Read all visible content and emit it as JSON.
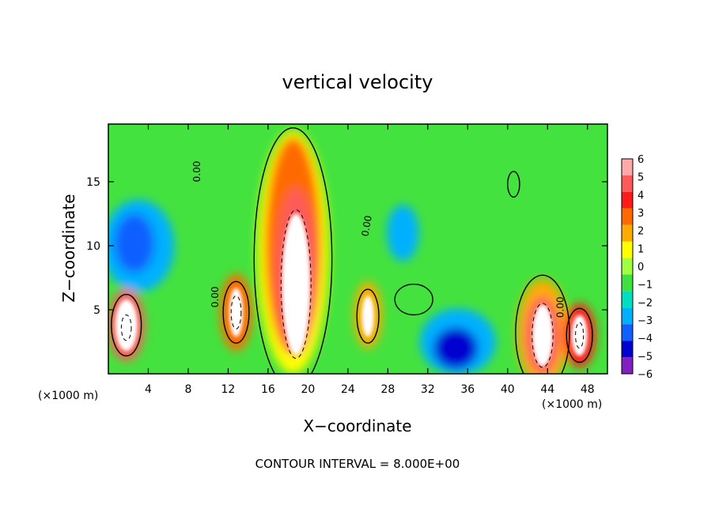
{
  "chart_data": {
    "type": "heatmap",
    "title": "vertical velocity",
    "xlabel": "X−coordinate",
    "ylabel": "Z−coordinate",
    "x_units_label": "(×1000 m)",
    "xlim": [
      0,
      50
    ],
    "ylim": [
      0,
      19.5
    ],
    "x_ticks": [
      4,
      8,
      12,
      16,
      20,
      24,
      28,
      32,
      36,
      40,
      44,
      48
    ],
    "x_tick_labels": [
      "4",
      "8",
      "12",
      "16",
      "20",
      "24",
      "28",
      "32",
      "36",
      "40",
      "44",
      "48"
    ],
    "y_ticks": [
      5,
      10,
      15
    ],
    "y_tick_labels": [
      "5",
      "10",
      "15"
    ],
    "contour_interval_text": "CONTOUR INTERVAL = 8.000E+00",
    "contour_labels": [
      "0.00",
      "0.00",
      "0.00",
      "0.00"
    ],
    "colorbar": {
      "min": -6,
      "max": 6,
      "labels": [
        "6",
        "5",
        "4",
        "3",
        "2",
        "1",
        "0",
        "−1",
        "−2",
        "−3",
        "−4",
        "−5",
        "−6"
      ],
      "colors": [
        "#ffaaaa",
        "#ff5a5a",
        "#ff1a1a",
        "#ff6a00",
        "#ffaa00",
        "#ffff00",
        "#a0ff40",
        "#40e040",
        "#00e0c0",
        "#00b0ff",
        "#1060ff",
        "#0000d0",
        "#8020c0"
      ]
    },
    "features": [
      {
        "kind": "updraft",
        "x": 18.5,
        "z": 8.5,
        "value": 8
      },
      {
        "kind": "updraft",
        "x": 43.5,
        "z": 3.0,
        "value": 7
      },
      {
        "kind": "updraft",
        "x": 12.8,
        "z": 4.8,
        "value": 6
      },
      {
        "kind": "updraft",
        "x": 26.0,
        "z": 4.5,
        "value": 6
      },
      {
        "kind": "updraft",
        "x": 1.8,
        "z": 3.8,
        "value": 6
      },
      {
        "kind": "updraft",
        "x": 47.2,
        "z": 3.0,
        "value": 6
      },
      {
        "kind": "downdraft",
        "x": 3.0,
        "z": 10.0,
        "value": -4
      },
      {
        "kind": "downdraft",
        "x": 35.0,
        "z": 2.5,
        "value": -5
      },
      {
        "kind": "downdraft",
        "x": 29.5,
        "z": 11.0,
        "value": -3
      }
    ]
  }
}
